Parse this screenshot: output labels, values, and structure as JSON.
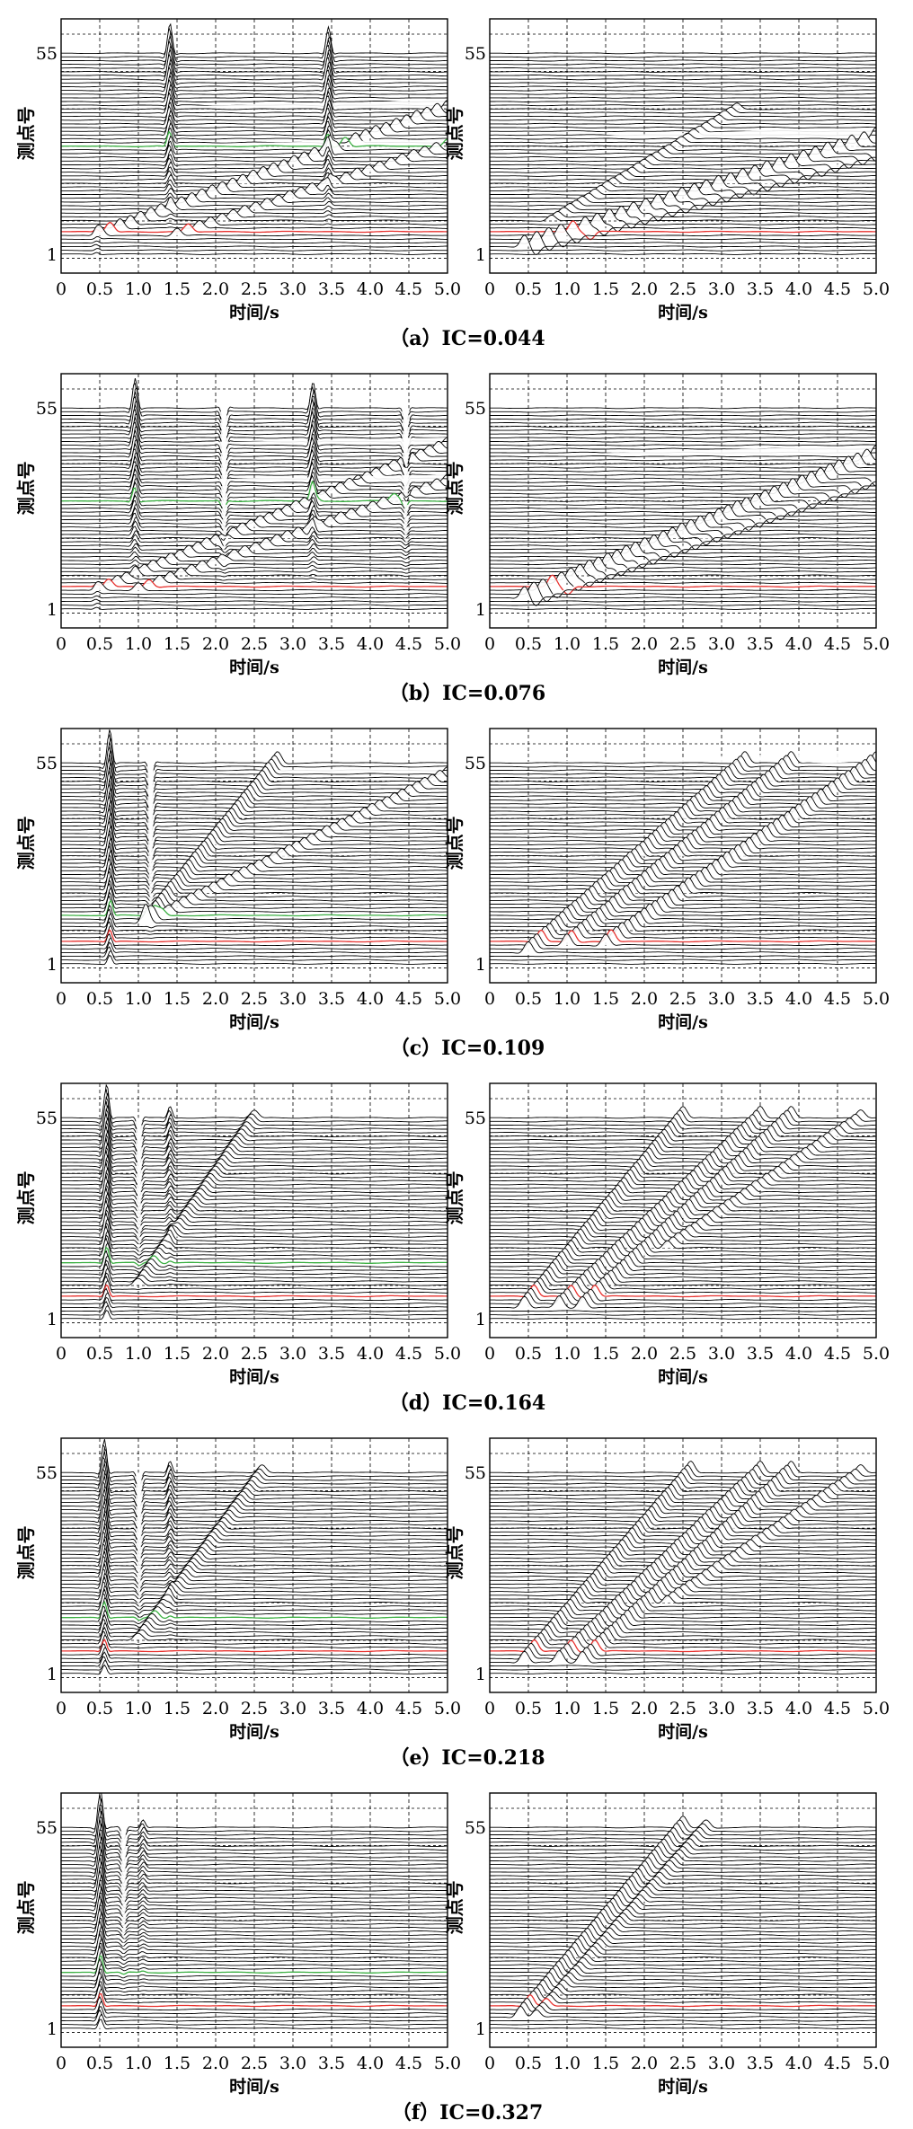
{
  "colors": {
    "trace": "#000000",
    "highlight_low": "#e8322f",
    "highlight_mid": "#3cb043",
    "grid": "#000000"
  },
  "axis_text": {
    "xlabel": "时间/s",
    "ylabel": "测点号",
    "xticks": [
      "0",
      "0.5",
      "1.0",
      "1.5",
      "2.0",
      "2.5",
      "3.0",
      "3.5",
      "4.0",
      "4.5",
      "5.0"
    ],
    "yticks": [
      "1",
      "55"
    ]
  },
  "chart_data": [
    {
      "type": "line",
      "caption": "（a）IC=0.044",
      "xlim": [
        0,
        5
      ],
      "ylim": [
        1,
        55
      ],
      "traces": 55,
      "left": {
        "red": 7,
        "green": 30,
        "vertical": [
          {
            "t": 0.45,
            "amp": 2,
            "from": 1,
            "to": 7
          },
          {
            "t": 1.4,
            "amp": 8,
            "from": 8,
            "to": 55
          },
          {
            "t": 3.45,
            "amp": 7,
            "from": 8,
            "to": 55
          }
        ],
        "moveout": [
          {
            "t0": 0.5,
            "t1": 5.0,
            "i0": 6,
            "i1": 40,
            "amp": 2.5
          },
          {
            "t0": 1.5,
            "t1": 5.0,
            "i0": 6,
            "i1": 30,
            "amp": 2
          }
        ]
      },
      "right": {
        "red": 7,
        "green": null,
        "vertical": [],
        "moveout": [
          {
            "t0": 0.45,
            "t1": 5.0,
            "i0": 3,
            "i1": 32,
            "amp": 3
          },
          {
            "t0": 0.6,
            "t1": 5.0,
            "i0": 3,
            "i1": 28,
            "amp": -2
          },
          {
            "t0": 0.8,
            "t1": 3.2,
            "i0": 10,
            "i1": 40,
            "amp": 1.5
          }
        ]
      }
    },
    {
      "type": "line",
      "caption": "（b）IC=0.076",
      "xlim": [
        0,
        5
      ],
      "ylim": [
        1,
        55
      ],
      "traces": 55,
      "left": {
        "red": 7,
        "green": 30,
        "vertical": [
          {
            "t": 0.45,
            "amp": 2,
            "from": 1,
            "to": 7
          },
          {
            "t": 0.95,
            "amp": 8,
            "from": 8,
            "to": 55
          },
          {
            "t": 2.1,
            "amp": -5,
            "from": 8,
            "to": 55
          },
          {
            "t": 3.25,
            "amp": 7,
            "from": 8,
            "to": 55
          },
          {
            "t": 4.45,
            "amp": -4,
            "from": 8,
            "to": 55
          }
        ],
        "moveout": [
          {
            "t0": 0.5,
            "t1": 5.0,
            "i0": 6,
            "i1": 45,
            "amp": 2
          },
          {
            "t0": 1.0,
            "t1": 5.0,
            "i0": 6,
            "i1": 35,
            "amp": 2
          }
        ]
      },
      "right": {
        "red": 7,
        "green": null,
        "vertical": [],
        "moveout": [
          {
            "t0": 0.45,
            "t1": 5.0,
            "i0": 4,
            "i1": 42,
            "amp": 3
          },
          {
            "t0": 0.6,
            "t1": 5.0,
            "i0": 4,
            "i1": 36,
            "amp": -2
          }
        ]
      }
    },
    {
      "type": "line",
      "caption": "（c）IC=0.109",
      "xlim": [
        0,
        5
      ],
      "ylim": [
        1,
        55
      ],
      "traces": 55,
      "left": {
        "red": 7,
        "green": 14,
        "vertical": [
          {
            "t": 0.62,
            "amp": 9,
            "from": 1,
            "to": 55
          },
          {
            "t": 1.15,
            "amp": -5,
            "from": 8,
            "to": 55
          }
        ],
        "moveout": [
          {
            "t0": 1.1,
            "t1": 2.8,
            "i0": 12,
            "i1": 55,
            "amp": 3
          },
          {
            "t0": 1.1,
            "t1": 5.0,
            "i0": 12,
            "i1": 52,
            "amp": 2
          }
        ]
      },
      "right": {
        "red": 7,
        "green": null,
        "vertical": [],
        "moveout": [
          {
            "t0": 0.5,
            "t1": 3.3,
            "i0": 4,
            "i1": 55,
            "amp": 3
          },
          {
            "t0": 1.0,
            "t1": 3.9,
            "i0": 6,
            "i1": 55,
            "amp": 3
          },
          {
            "t0": 1.5,
            "t1": 5.0,
            "i0": 6,
            "i1": 55,
            "amp": 3
          }
        ]
      }
    },
    {
      "type": "line",
      "caption": "（d）IC=0.164",
      "xlim": [
        0,
        5
      ],
      "ylim": [
        1,
        55
      ],
      "traces": 55,
      "left": {
        "red": 7,
        "green": 16,
        "vertical": [
          {
            "t": 0.58,
            "amp": 9,
            "from": 1,
            "to": 55
          },
          {
            "t": 1.0,
            "amp": -4,
            "from": 8,
            "to": 55
          },
          {
            "t": 1.4,
            "amp": 3,
            "from": 8,
            "to": 55
          }
        ],
        "moveout": [
          {
            "t0": 1.0,
            "t1": 2.5,
            "i0": 10,
            "i1": 55,
            "amp": 2
          }
        ]
      },
      "right": {
        "red": 7,
        "green": null,
        "vertical": [],
        "moveout": [
          {
            "t0": 0.45,
            "t1": 2.5,
            "i0": 4,
            "i1": 55,
            "amp": 3
          },
          {
            "t0": 0.9,
            "t1": 3.5,
            "i0": 4,
            "i1": 55,
            "amp": 3
          },
          {
            "t0": 1.2,
            "t1": 3.9,
            "i0": 4,
            "i1": 55,
            "amp": 3
          },
          {
            "t0": 2.3,
            "t1": 4.8,
            "i0": 20,
            "i1": 55,
            "amp": 2
          }
        ]
      }
    },
    {
      "type": "line",
      "caption": "（e）IC=0.218",
      "xlim": [
        0,
        5
      ],
      "ylim": [
        1,
        55
      ],
      "traces": 55,
      "left": {
        "red": 7,
        "green": 16,
        "vertical": [
          {
            "t": 0.55,
            "amp": 9,
            "from": 1,
            "to": 55
          },
          {
            "t": 1.0,
            "amp": -4,
            "from": 8,
            "to": 55
          },
          {
            "t": 1.4,
            "amp": 3,
            "from": 8,
            "to": 55
          }
        ],
        "moveout": [
          {
            "t0": 1.0,
            "t1": 2.6,
            "i0": 10,
            "i1": 55,
            "amp": 2
          }
        ]
      },
      "right": {
        "red": 7,
        "green": null,
        "vertical": [],
        "moveout": [
          {
            "t0": 0.45,
            "t1": 2.6,
            "i0": 4,
            "i1": 55,
            "amp": 3
          },
          {
            "t0": 0.9,
            "t1": 3.5,
            "i0": 4,
            "i1": 55,
            "amp": 3
          },
          {
            "t0": 1.2,
            "t1": 3.9,
            "i0": 4,
            "i1": 55,
            "amp": 3
          },
          {
            "t0": 2.3,
            "t1": 4.8,
            "i0": 20,
            "i1": 55,
            "amp": 2
          }
        ]
      }
    },
    {
      "type": "line",
      "caption": "（f）IC=0.327",
      "xlim": [
        0,
        5
      ],
      "ylim": [
        1,
        55
      ],
      "traces": 55,
      "left": {
        "red": 7,
        "green": 16,
        "vertical": [
          {
            "t": 0.5,
            "amp": 10,
            "from": 1,
            "to": 55
          },
          {
            "t": 0.8,
            "amp": -3,
            "from": 8,
            "to": 55
          },
          {
            "t": 1.05,
            "amp": 2,
            "from": 8,
            "to": 55
          }
        ],
        "moveout": []
      },
      "right": {
        "red": 7,
        "green": null,
        "vertical": [],
        "moveout": [
          {
            "t0": 0.4,
            "t1": 2.5,
            "i0": 4,
            "i1": 55,
            "amp": 3
          },
          {
            "t0": 0.6,
            "t1": 2.8,
            "i0": 4,
            "i1": 55,
            "amp": 2
          }
        ]
      }
    }
  ]
}
